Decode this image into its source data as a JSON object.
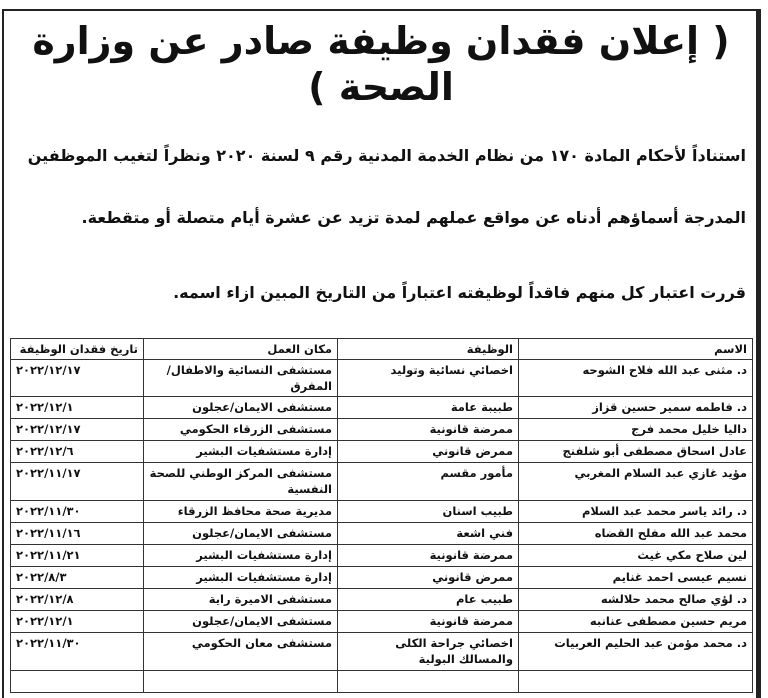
{
  "title": "( إعلان فقدان وظيفة صادر عن وزارة الصحة )",
  "paragraphs": [
    "استناداً لأحكام المادة ١٧٠ من نظام الخدمة المدنية رقم ٩ لسنة ٢٠٢٠ ونظراً لتغيب الموظفين",
    "المدرجة أسماؤهم أدناه عن مواقع عملهم لمدة تزيد عن عشرة أيام متصلة أو متقطعة.",
    "قررت اعتبار كل منهم فاقداً لوظيفته اعتباراً من التاريخ المبين ازاء اسمه."
  ],
  "table": {
    "headers": [
      "الاسم",
      "الوظيفة",
      "مكان العمل",
      "تاريخ فقدان الوظيفة"
    ],
    "rows": [
      [
        "د. مثنى عبد الله فلاح الشوحه",
        "اخصائي نسائية وتوليد",
        "مستشفى النسائية والاطفال/المفرق",
        "٢٠٢٢/١٢/١٧"
      ],
      [
        "د. فاطمه سمير حسين قزاز",
        "طبيبة عامة",
        "مستشفى الايمان/عجلون",
        "٢٠٢٢/١٢/١"
      ],
      [
        "داليا خليل محمد فرج",
        "ممرضة قانونية",
        "مستشفى الزرقاء الحكومي",
        "٢٠٢٢/١٢/١٧"
      ],
      [
        "عادل اسحاق مصطفى أبو شلفنج",
        "ممرض قانوني",
        "إدارة مستشفيات البشير",
        "٢٠٢٢/١٢/٦"
      ],
      [
        "مؤيد غازي عبد السلام المغربي",
        "مأمور مقسم",
        "مستشفى المركز الوطني للصحة النفسية",
        "٢٠٢٢/١١/١٧"
      ],
      [
        "د. رائد ياسر محمد عبد السلام",
        "طبيب اسنان",
        "مديرية صحة محافظ الزرقاء",
        "٢٠٢٢/١١/٣٠"
      ],
      [
        "محمد عبد الله مفلح القضاه",
        "فني اشعة",
        "مستشفى الايمان/عجلون",
        "٢٠٢٢/١١/١٦"
      ],
      [
        "لين صلاح مكي غيث",
        "ممرضة قانونية",
        "إدارة مستشفيات البشير",
        "٢٠٢٢/١١/٢١"
      ],
      [
        "نسيم عيسى احمد غنايم",
        "ممرض قانوني",
        "إدارة مستشفيات البشير",
        "٢٠٢٢/٨/٣"
      ],
      [
        "د. لؤي صالح محمد حلالشه",
        "طبيب عام",
        "مستشفى الاميرة راية",
        "٢٠٢٢/١٢/٨"
      ],
      [
        "مريم حسين مصطفى عنانبه",
        "ممرضة قانونية",
        "مستشفى الايمان/عجلون",
        "٢٠٢٢/١٢/١"
      ],
      [
        "د. محمد مؤمن عبد الحليم العربيات",
        "اخصائي جراحة الكلى والمسالك البولية",
        "مستشفى معان الحكومي",
        "٢٠٢٢/١١/٣٠"
      ]
    ]
  }
}
